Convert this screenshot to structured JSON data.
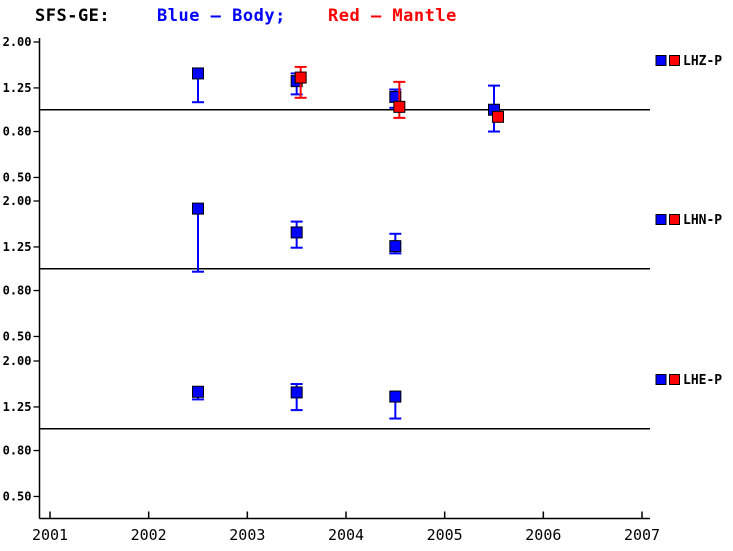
{
  "title": {
    "station": "SFS-GE:",
    "blue_segment": "Blue – Body;",
    "red_segment": "Red – Mantle"
  },
  "colors": {
    "body": "#0000ff",
    "mantle": "#ff0000",
    "axis": "#000000",
    "background": "#ffffff"
  },
  "chart_data": {
    "type": "scatter",
    "title": "SFS-GE:  Blue – Body;  Red – Mantle",
    "xlabel": "",
    "ylabel": "",
    "x_axis": {
      "ticks": [
        2001,
        2002,
        2003,
        2004,
        2005,
        2006,
        2007
      ],
      "range": [
        2001,
        2007
      ],
      "grid": false
    },
    "y_axis": {
      "scale": "log",
      "tick_labels": [
        "2.00",
        "1.25",
        "0.80",
        "0.50"
      ],
      "tick_values": [
        2.0,
        1.25,
        0.8,
        0.5
      ],
      "range": [
        0.5,
        2.0
      ],
      "reference_line": 1.0
    },
    "legend_position": "right",
    "panels": [
      {
        "channel": "LHZ-P",
        "series": [
          {
            "name": "Body",
            "color_key": "body",
            "points": [
              {
                "x": 2002.5,
                "y": 1.45,
                "lo": 1.08,
                "hi": 1.46
              },
              {
                "x": 2003.5,
                "y": 1.34,
                "lo": 1.17,
                "hi": 1.45
              },
              {
                "x": 2004.5,
                "y": 1.14,
                "lo": 1.02,
                "hi": 1.23
              },
              {
                "x": 2005.5,
                "y": 1.0,
                "lo": 0.8,
                "hi": 1.28
              }
            ]
          },
          {
            "name": "Mantle",
            "color_key": "mantle",
            "points": [
              {
                "x": 2003.5,
                "y": 1.39,
                "lo": 1.13,
                "hi": 1.55
              },
              {
                "x": 2004.5,
                "y": 1.03,
                "lo": 0.92,
                "hi": 1.33
              },
              {
                "x": 2005.5,
                "y": 0.93,
                "lo": 0.93,
                "hi": 0.93
              }
            ]
          }
        ]
      },
      {
        "channel": "LHN-P",
        "series": [
          {
            "name": "Body",
            "color_key": "body",
            "points": [
              {
                "x": 2002.5,
                "y": 1.85,
                "lo": 0.97,
                "hi": 1.87
              },
              {
                "x": 2003.5,
                "y": 1.45,
                "lo": 1.24,
                "hi": 1.62
              },
              {
                "x": 2004.5,
                "y": 1.26,
                "lo": 1.17,
                "hi": 1.43
              }
            ]
          },
          {
            "name": "Mantle",
            "color_key": "mantle",
            "points": []
          }
        ]
      },
      {
        "channel": "LHE-P",
        "series": [
          {
            "name": "Body",
            "color_key": "body",
            "points": [
              {
                "x": 2002.5,
                "y": 1.46,
                "lo": 1.35,
                "hi": 1.47
              },
              {
                "x": 2003.5,
                "y": 1.45,
                "lo": 1.21,
                "hi": 1.58
              },
              {
                "x": 2004.5,
                "y": 1.39,
                "lo": 1.11,
                "hi": 1.42
              }
            ]
          },
          {
            "name": "Mantle",
            "color_key": "mantle",
            "points": []
          }
        ]
      }
    ]
  }
}
